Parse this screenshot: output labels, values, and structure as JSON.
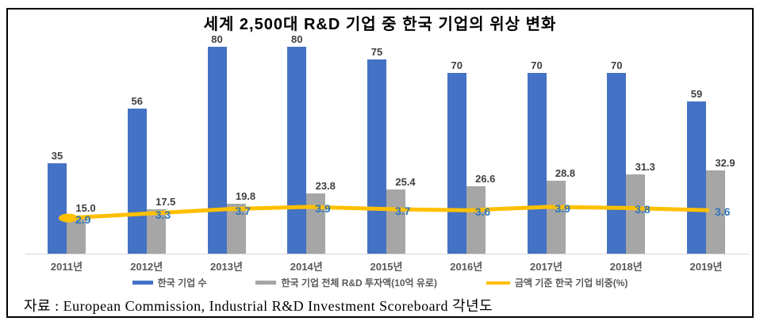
{
  "title": "세계 2,500대 R&D 기업 중 한국 기업의 위상 변화",
  "source": "자료 : European Commission, Industrial R&D Investment Scoreboard 각년도",
  "colors": {
    "bar_blue": "#4472C4",
    "bar_gray": "#A6A6A6",
    "line_yellow": "#FFC000",
    "line_label_blue": "#2E75B6",
    "bar_label_gray": "#3F3F3F",
    "axis_label_gray": "#595959"
  },
  "chart_data": {
    "type": "bar",
    "title": "세계 2,500대 R&D 기업 중 한국 기업의 위상 변화",
    "categories": [
      "2011년",
      "2012년",
      "2013년",
      "2014년",
      "2015년",
      "2016년",
      "2017년",
      "2018년",
      "2019년"
    ],
    "series": [
      {
        "name": "한국 기업 수",
        "type": "bar",
        "color": "#4472C4",
        "decimals": 0,
        "values": [
          35,
          56,
          80,
          80,
          75,
          70,
          70,
          70,
          59
        ]
      },
      {
        "name": "한국 기업 전체 R&D 투자액(10억 유로)",
        "type": "bar",
        "color": "#A6A6A6",
        "decimals": 1,
        "values": [
          15.0,
          17.5,
          19.8,
          23.8,
          25.4,
          26.6,
          28.8,
          31.3,
          32.9
        ]
      },
      {
        "name": "금액 기준 한국 기업 비중(%)",
        "type": "line",
        "color": "#FFC000",
        "decimals": 1,
        "values": [
          2.9,
          3.3,
          3.7,
          3.9,
          3.7,
          3.6,
          3.9,
          3.8,
          3.6
        ]
      }
    ],
    "legend_position": "bottom",
    "grid": false,
    "value_labels": true,
    "axes_hidden": true
  }
}
